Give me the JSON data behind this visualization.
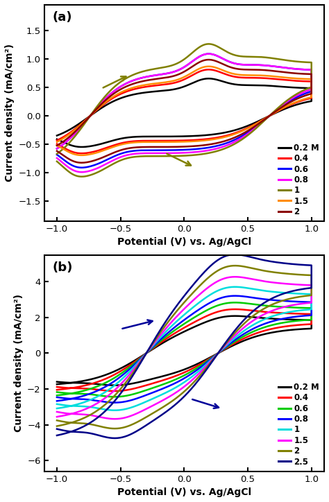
{
  "panel_a": {
    "label": "(a)",
    "ylabel": "Current density (mA/cm²)",
    "xlabel": "Potential (V) vs. Ag/AgCl",
    "xlim": [
      -1.1,
      1.1
    ],
    "ylim": [
      -1.85,
      1.95
    ],
    "yticks": [
      -1.5,
      -1.0,
      -0.5,
      0.0,
      0.5,
      1.0,
      1.5
    ],
    "xticks": [
      -1.0,
      -0.5,
      0.0,
      0.5,
      1.0
    ],
    "series": [
      {
        "label": "0.2 M",
        "color": "#000000",
        "fwd_scale": 0.83,
        "rev_scale": 0.83
      },
      {
        "label": "0.4",
        "color": "#FF0000",
        "fwd_scale": 1.03,
        "rev_scale": 1.0
      },
      {
        "label": "0.6",
        "color": "#0000FF",
        "fwd_scale": 1.38,
        "rev_scale": 1.38
      },
      {
        "label": "0.8",
        "color": "#FF00FF",
        "fwd_scale": 1.38,
        "rev_scale": 1.5
      },
      {
        "label": "1",
        "color": "#808000",
        "fwd_scale": 1.6,
        "rev_scale": 1.62
      },
      {
        "label": "1.5",
        "color": "#FF8C00",
        "fwd_scale": 1.1,
        "rev_scale": 1.05
      },
      {
        "label": "2",
        "color": "#8B0000",
        "fwd_scale": 1.25,
        "rev_scale": 1.25
      }
    ]
  },
  "panel_b": {
    "label": "(b)",
    "ylabel": "Current density (mA/cm²)",
    "xlabel": "Potential (V) vs. Ag/AgCl",
    "xlim": [
      -1.1,
      1.1
    ],
    "ylim": [
      -6.6,
      5.5
    ],
    "yticks": [
      -6,
      -4,
      -2,
      0,
      2,
      4
    ],
    "xticks": [
      -1.0,
      -0.5,
      0.0,
      0.5,
      1.0
    ],
    "series": [
      {
        "label": "0.2 M",
        "color": "#000000",
        "fwd_scale": 1.0,
        "rev_scale": 1.0
      },
      {
        "label": "0.4",
        "color": "#FF0000",
        "fwd_scale": 1.18,
        "rev_scale": 1.18
      },
      {
        "label": "0.6",
        "color": "#00CC00",
        "fwd_scale": 1.36,
        "rev_scale": 1.36
      },
      {
        "label": "0.8",
        "color": "#0000FF",
        "fwd_scale": 1.54,
        "rev_scale": 1.54
      },
      {
        "label": "1",
        "color": "#00DDDD",
        "fwd_scale": 1.78,
        "rev_scale": 1.78
      },
      {
        "label": "1.5",
        "color": "#FF00FF",
        "fwd_scale": 2.05,
        "rev_scale": 2.05
      },
      {
        "label": "2",
        "color": "#808000",
        "fwd_scale": 2.35,
        "rev_scale": 2.35
      },
      {
        "label": "2.5",
        "color": "#000088",
        "fwd_scale": 2.65,
        "rev_scale": 2.65
      }
    ]
  }
}
